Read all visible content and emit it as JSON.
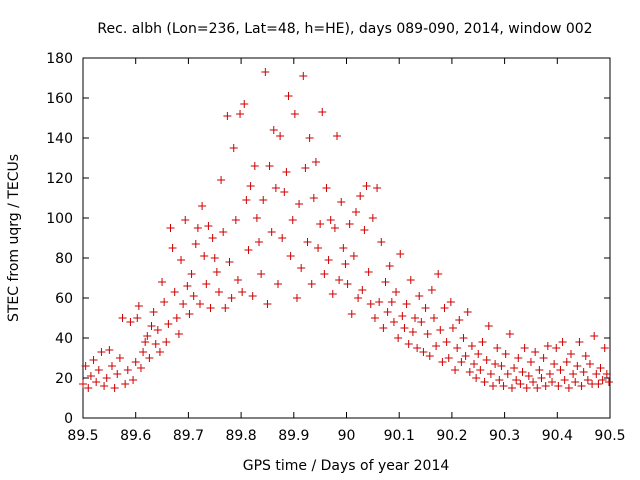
{
  "chart_data": {
    "type": "scatter",
    "title": "Rec. albh (Lon=236, Lat=48, h=HE), days 089-090, 2014, window 002",
    "xlabel": "GPS time / Days of year 2014",
    "ylabel": "STEC from uqrg / TECUs",
    "xlim": [
      89.5,
      90.5
    ],
    "ylim": [
      0,
      180
    ],
    "xticks": [
      89.5,
      89.6,
      89.7,
      89.8,
      89.9,
      90,
      90.1,
      90.2,
      90.3,
      90.4,
      90.5
    ],
    "xtick_labels": [
      "89.5",
      "89.6",
      "89.7",
      "89.8",
      "89.9",
      "90",
      "90.1",
      "90.2",
      "90.3",
      "90.4",
      "90.5"
    ],
    "yticks": [
      0,
      20,
      40,
      60,
      80,
      100,
      120,
      140,
      160,
      180
    ],
    "ytick_labels": [
      "0",
      "20",
      "40",
      "60",
      "80",
      "100",
      "120",
      "140",
      "160",
      "180"
    ],
    "grid": false,
    "marker": "+",
    "color": "#cc0000",
    "series": [
      {
        "name": "STEC",
        "points": [
          [
            89.5,
            17
          ],
          [
            89.505,
            26
          ],
          [
            89.51,
            15
          ],
          [
            89.515,
            21
          ],
          [
            89.52,
            29
          ],
          [
            89.525,
            18
          ],
          [
            89.53,
            24
          ],
          [
            89.535,
            33
          ],
          [
            89.54,
            16
          ],
          [
            89.545,
            20
          ],
          [
            89.55,
            34
          ],
          [
            89.555,
            26
          ],
          [
            89.56,
            15
          ],
          [
            89.565,
            22
          ],
          [
            89.57,
            30
          ],
          [
            89.575,
            50
          ],
          [
            89.58,
            17
          ],
          [
            89.585,
            24
          ],
          [
            89.59,
            48
          ],
          [
            89.595,
            19
          ],
          [
            89.6,
            28
          ],
          [
            89.603,
            50
          ],
          [
            89.606,
            56
          ],
          [
            89.61,
            25
          ],
          [
            89.614,
            33
          ],
          [
            89.618,
            38
          ],
          [
            89.622,
            41
          ],
          [
            89.626,
            30
          ],
          [
            89.63,
            46
          ],
          [
            89.634,
            53
          ],
          [
            89.638,
            37
          ],
          [
            89.642,
            44
          ],
          [
            89.646,
            33
          ],
          [
            89.65,
            68
          ],
          [
            89.654,
            58
          ],
          [
            89.658,
            38
          ],
          [
            89.662,
            47
          ],
          [
            89.666,
            95
          ],
          [
            89.67,
            85
          ],
          [
            89.674,
            63
          ],
          [
            89.678,
            50
          ],
          [
            89.682,
            42
          ],
          [
            89.686,
            79
          ],
          [
            89.69,
            57
          ],
          [
            89.694,
            99
          ],
          [
            89.698,
            66
          ],
          [
            89.702,
            52
          ],
          [
            89.706,
            72
          ],
          [
            89.71,
            61
          ],
          [
            89.714,
            87
          ],
          [
            89.718,
            95
          ],
          [
            89.722,
            57
          ],
          [
            89.726,
            106
          ],
          [
            89.73,
            81
          ],
          [
            89.734,
            67
          ],
          [
            89.738,
            96
          ],
          [
            89.742,
            55
          ],
          [
            89.746,
            90
          ],
          [
            89.75,
            80
          ],
          [
            89.754,
            73
          ],
          [
            89.758,
            63
          ],
          [
            89.762,
            119
          ],
          [
            89.766,
            93
          ],
          [
            89.77,
            55
          ],
          [
            89.774,
            151
          ],
          [
            89.778,
            78
          ],
          [
            89.782,
            60
          ],
          [
            89.786,
            135
          ],
          [
            89.79,
            99
          ],
          [
            89.794,
            69
          ],
          [
            89.798,
            152
          ],
          [
            89.802,
            63
          ],
          [
            89.806,
            157
          ],
          [
            89.81,
            109
          ],
          [
            89.814,
            84
          ],
          [
            89.818,
            116
          ],
          [
            89.822,
            61
          ],
          [
            89.826,
            126
          ],
          [
            89.83,
            100
          ],
          [
            89.834,
            88
          ],
          [
            89.838,
            72
          ],
          [
            89.842,
            109
          ],
          [
            89.846,
            173
          ],
          [
            89.85,
            57
          ],
          [
            89.854,
            126
          ],
          [
            89.858,
            93
          ],
          [
            89.862,
            144
          ],
          [
            89.866,
            115
          ],
          [
            89.87,
            67
          ],
          [
            89.874,
            141
          ],
          [
            89.878,
            90
          ],
          [
            89.882,
            113
          ],
          [
            89.886,
            123
          ],
          [
            89.89,
            161
          ],
          [
            89.894,
            81
          ],
          [
            89.898,
            99
          ],
          [
            89.902,
            152
          ],
          [
            89.906,
            60
          ],
          [
            89.91,
            107
          ],
          [
            89.914,
            75
          ],
          [
            89.918,
            171
          ],
          [
            89.922,
            125
          ],
          [
            89.926,
            88
          ],
          [
            89.93,
            140
          ],
          [
            89.934,
            67
          ],
          [
            89.938,
            110
          ],
          [
            89.942,
            128
          ],
          [
            89.946,
            85
          ],
          [
            89.95,
            97
          ],
          [
            89.954,
            153
          ],
          [
            89.958,
            72
          ],
          [
            89.962,
            115
          ],
          [
            89.966,
            79
          ],
          [
            89.97,
            99
          ],
          [
            89.974,
            62
          ],
          [
            89.978,
            95
          ],
          [
            89.982,
            141
          ],
          [
            89.986,
            69
          ],
          [
            89.99,
            108
          ],
          [
            89.994,
            85
          ],
          [
            89.998,
            77
          ],
          [
            90.002,
            67
          ],
          [
            90.006,
            97
          ],
          [
            90.01,
            52
          ],
          [
            90.014,
            81
          ],
          [
            90.018,
            103
          ],
          [
            90.022,
            60
          ],
          [
            90.026,
            111
          ],
          [
            90.03,
            64
          ],
          [
            90.034,
            94
          ],
          [
            90.038,
            116
          ],
          [
            90.042,
            73
          ],
          [
            90.046,
            57
          ],
          [
            90.05,
            100
          ],
          [
            90.054,
            50
          ],
          [
            90.058,
            115
          ],
          [
            90.062,
            58
          ],
          [
            90.066,
            88
          ],
          [
            90.07,
            45
          ],
          [
            90.074,
            68
          ],
          [
            90.078,
            53
          ],
          [
            90.082,
            76
          ],
          [
            90.086,
            58
          ],
          [
            90.09,
            48
          ],
          [
            90.094,
            63
          ],
          [
            90.098,
            40
          ],
          [
            90.102,
            82
          ],
          [
            90.106,
            51
          ],
          [
            90.11,
            45
          ],
          [
            90.114,
            57
          ],
          [
            90.118,
            37
          ],
          [
            90.122,
            69
          ],
          [
            90.126,
            43
          ],
          [
            90.13,
            50
          ],
          [
            90.134,
            35
          ],
          [
            90.138,
            61
          ],
          [
            90.142,
            48
          ],
          [
            90.146,
            33
          ],
          [
            90.15,
            55
          ],
          [
            90.154,
            42
          ],
          [
            90.158,
            31
          ],
          [
            90.162,
            64
          ],
          [
            90.166,
            50
          ],
          [
            90.17,
            36
          ],
          [
            90.174,
            72
          ],
          [
            90.178,
            44
          ],
          [
            90.182,
            28
          ],
          [
            90.186,
            55
          ],
          [
            90.19,
            38
          ],
          [
            90.194,
            30
          ],
          [
            90.198,
            58
          ],
          [
            90.202,
            45
          ],
          [
            90.206,
            24
          ],
          [
            90.21,
            35
          ],
          [
            90.214,
            49
          ],
          [
            90.218,
            28
          ],
          [
            90.222,
            40
          ],
          [
            90.226,
            31
          ],
          [
            90.23,
            53
          ],
          [
            90.234,
            23
          ],
          [
            90.238,
            36
          ],
          [
            90.242,
            27
          ],
          [
            90.246,
            20
          ],
          [
            90.25,
            32
          ],
          [
            90.254,
            24
          ],
          [
            90.258,
            38
          ],
          [
            90.262,
            18
          ],
          [
            90.266,
            29
          ],
          [
            90.27,
            46
          ],
          [
            90.274,
            22
          ],
          [
            90.278,
            16
          ],
          [
            90.282,
            27
          ],
          [
            90.286,
            35
          ],
          [
            90.29,
            19
          ],
          [
            90.294,
            26
          ],
          [
            90.298,
            16
          ],
          [
            90.302,
            32
          ],
          [
            90.306,
            22
          ],
          [
            90.31,
            42
          ],
          [
            90.314,
            15
          ],
          [
            90.318,
            25
          ],
          [
            90.322,
            19
          ],
          [
            90.326,
            30
          ],
          [
            90.33,
            17
          ],
          [
            90.334,
            23
          ],
          [
            90.338,
            35
          ],
          [
            90.342,
            15
          ],
          [
            90.346,
            21
          ],
          [
            90.35,
            28
          ],
          [
            90.354,
            18
          ],
          [
            90.358,
            33
          ],
          [
            90.362,
            15
          ],
          [
            90.366,
            24
          ],
          [
            90.37,
            20
          ],
          [
            90.374,
            30
          ],
          [
            90.378,
            16
          ],
          [
            90.382,
            36
          ],
          [
            90.386,
            22
          ],
          [
            90.39,
            18
          ],
          [
            90.394,
            27
          ],
          [
            90.398,
            35
          ],
          [
            90.402,
            16
          ],
          [
            90.406,
            24
          ],
          [
            90.41,
            38
          ],
          [
            90.414,
            19
          ],
          [
            90.418,
            28
          ],
          [
            90.422,
            15
          ],
          [
            90.426,
            32
          ],
          [
            90.43,
            22
          ],
          [
            90.434,
            18
          ],
          [
            90.438,
            26
          ],
          [
            90.442,
            38
          ],
          [
            90.446,
            16
          ],
          [
            90.45,
            23
          ],
          [
            90.454,
            31
          ],
          [
            90.458,
            19
          ],
          [
            90.462,
            27
          ],
          [
            90.466,
            17
          ],
          [
            90.47,
            41
          ],
          [
            90.474,
            22
          ],
          [
            90.478,
            17
          ],
          [
            90.482,
            25
          ],
          [
            90.486,
            19
          ],
          [
            90.49,
            35
          ],
          [
            90.494,
            22
          ],
          [
            90.498,
            18
          ]
        ]
      }
    ]
  }
}
